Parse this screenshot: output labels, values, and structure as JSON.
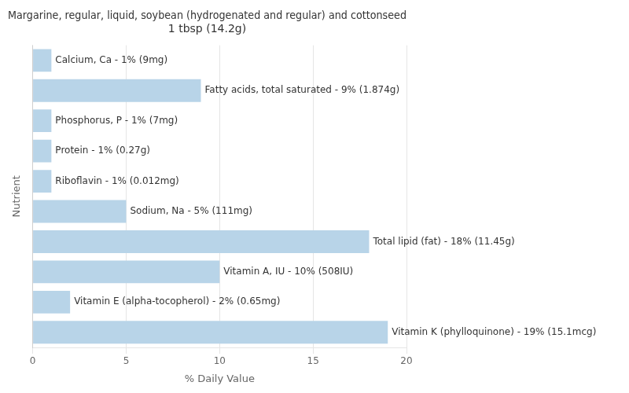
{
  "chart_data": {
    "type": "bar",
    "orientation": "horizontal",
    "title": "Margarine, regular, liquid, soybean (hydrogenated and regular) and cottonseed\n1 tbsp (14.2g)",
    "xlabel": "% Daily Value",
    "ylabel": "Nutrient",
    "categories": [
      "Calcium, Ca - 1% (9mg)",
      "Fatty acids, total saturated - 9% (1.874g)",
      "Phosphorus, P - 1% (7mg)",
      "Protein - 1% (0.27g)",
      "Riboflavin - 1% (0.012mg)",
      "Sodium, Na - 5% (111mg)",
      "Total lipid (fat) - 18% (11.45g)",
      "Vitamin A, IU - 10% (508IU)",
      "Vitamin E (alpha-tocopherol) - 2% (0.65mg)",
      "Vitamin K (phylloquinone) - 19% (15.1mcg)"
    ],
    "values": [
      1,
      9,
      1,
      1,
      1,
      5,
      18,
      10,
      2,
      19
    ],
    "color": "#b8d4e8",
    "xlim": [
      0,
      20
    ],
    "xticks": [
      0,
      5,
      10,
      15,
      20
    ],
    "grid": true,
    "tick_labels": "x"
  }
}
